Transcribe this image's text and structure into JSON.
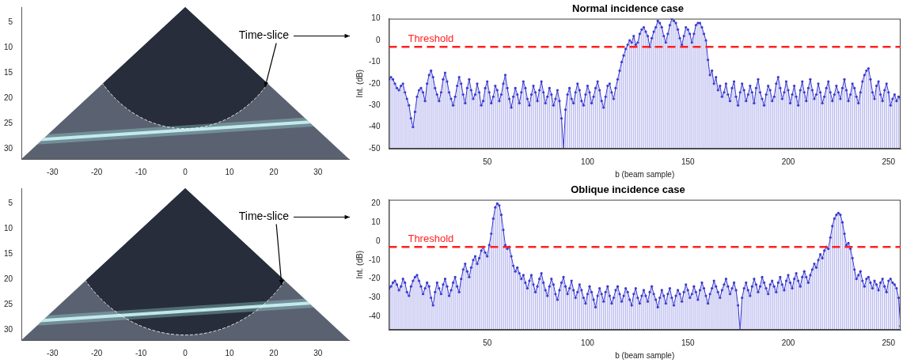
{
  "chart_data": [
    {
      "type": "image",
      "xlim": [
        -37,
        37
      ],
      "ylim": [
        2,
        32
      ],
      "xticks": [
        -30,
        -20,
        -10,
        0,
        10,
        20,
        30
      ],
      "yticks": [
        5,
        10,
        15,
        20,
        25,
        30
      ],
      "annotation": {
        "text": "Time-slice",
        "range": 24
      }
    },
    {
      "type": "bar",
      "title": "Normal incidence case",
      "x_label": "b (beam sample)",
      "y_label": "Int. (dB)",
      "color": "#3a3ad0",
      "marker": "circle",
      "grid": false,
      "xlim": [
        1,
        256
      ],
      "xticks": [
        50,
        100,
        150,
        200,
        250
      ],
      "ylim": [
        -50,
        10
      ],
      "yticks": [
        -50,
        -40,
        -30,
        -20,
        -10,
        0,
        10
      ],
      "threshold": {
        "value": -3,
        "label": "Threshold",
        "color": "#ff2020",
        "line_style": "dashed"
      },
      "x": [
        1,
        2,
        3,
        4,
        5,
        6,
        7,
        8,
        9,
        10,
        11,
        12,
        13,
        14,
        15,
        16,
        17,
        18,
        19,
        20,
        21,
        22,
        23,
        24,
        25,
        26,
        27,
        28,
        29,
        30,
        31,
        32,
        33,
        34,
        35,
        36,
        37,
        38,
        39,
        40,
        41,
        42,
        43,
        44,
        45,
        46,
        47,
        48,
        49,
        50,
        51,
        52,
        53,
        54,
        55,
        56,
        57,
        58,
        59,
        60,
        61,
        62,
        63,
        64,
        65,
        66,
        67,
        68,
        69,
        70,
        71,
        72,
        73,
        74,
        75,
        76,
        77,
        78,
        79,
        80,
        81,
        82,
        83,
        84,
        85,
        86,
        87,
        88,
        89,
        90,
        91,
        92,
        93,
        94,
        95,
        96,
        97,
        98,
        99,
        100,
        101,
        102,
        103,
        104,
        105,
        106,
        107,
        108,
        109,
        110,
        111,
        112,
        113,
        114,
        115,
        116,
        117,
        118,
        119,
        120,
        121,
        122,
        123,
        124,
        125,
        126,
        127,
        128,
        129,
        130,
        131,
        132,
        133,
        134,
        135,
        136,
        137,
        138,
        139,
        140,
        141,
        142,
        143,
        144,
        145,
        146,
        147,
        148,
        149,
        150,
        151,
        152,
        153,
        154,
        155,
        156,
        157,
        158,
        159,
        160,
        161,
        162,
        163,
        164,
        165,
        166,
        167,
        168,
        169,
        170,
        171,
        172,
        173,
        174,
        175,
        176,
        177,
        178,
        179,
        180,
        181,
        182,
        183,
        184,
        185,
        186,
        187,
        188,
        189,
        190,
        191,
        192,
        193,
        194,
        195,
        196,
        197,
        198,
        199,
        200,
        201,
        202,
        203,
        204,
        205,
        206,
        207,
        208,
        209,
        210,
        211,
        212,
        213,
        214,
        215,
        216,
        217,
        218,
        219,
        220,
        221,
        222,
        223,
        224,
        225,
        226,
        227,
        228,
        229,
        230,
        231,
        232,
        233,
        234,
        235,
        236,
        237,
        238,
        239,
        240,
        241,
        242,
        243,
        244,
        245,
        246,
        247,
        248,
        249,
        250,
        251,
        252,
        253,
        254,
        255,
        256
      ],
      "values": [
        -18,
        -17,
        -18,
        -20,
        -22,
        -23,
        -21,
        -20,
        -24,
        -27,
        -30,
        -36,
        -40,
        -33,
        -26,
        -23,
        -22,
        -24,
        -28,
        -20,
        -16,
        -14,
        -17,
        -22,
        -25,
        -28,
        -24,
        -18,
        -15,
        -19,
        -24,
        -27,
        -30,
        -26,
        -21,
        -17,
        -20,
        -25,
        -29,
        -22,
        -18,
        -23,
        -27,
        -25,
        -20,
        -24,
        -30,
        -28,
        -22,
        -19,
        -24,
        -29,
        -26,
        -21,
        -23,
        -28,
        -25,
        -20,
        -16,
        -22,
        -27,
        -31,
        -26,
        -22,
        -25,
        -29,
        -24,
        -19,
        -22,
        -27,
        -30,
        -25,
        -21,
        -24,
        -28,
        -23,
        -19,
        -24,
        -29,
        -26,
        -22,
        -25,
        -30,
        -27,
        -23,
        -28,
        -36,
        -50,
        -32,
        -25,
        -22,
        -27,
        -29,
        -24,
        -20,
        -23,
        -28,
        -30,
        -25,
        -21,
        -24,
        -29,
        -26,
        -22,
        -19,
        -23,
        -28,
        -31,
        -26,
        -21,
        -20,
        -24,
        -27,
        -22,
        -18,
        -14,
        -10,
        -7,
        -4,
        -2,
        0,
        -1,
        2,
        -2,
        -1,
        3,
        5,
        6,
        4,
        2,
        -3,
        1,
        4,
        6,
        9,
        8,
        6,
        2,
        -1,
        3,
        7,
        10,
        9,
        8,
        5,
        1,
        -2,
        2,
        6,
        5,
        3,
        -1,
        3,
        7,
        8,
        8,
        6,
        3,
        0,
        -9,
        -16,
        -14,
        -20,
        -17,
        -23,
        -21,
        -26,
        -24,
        -20,
        -25,
        -28,
        -22,
        -19,
        -26,
        -30,
        -24,
        -20,
        -23,
        -28,
        -25,
        -21,
        -24,
        -29,
        -22,
        -18,
        -24,
        -27,
        -30,
        -25,
        -21,
        -23,
        -28,
        -26,
        -20,
        -17,
        -22,
        -27,
        -24,
        -19,
        -23,
        -29,
        -25,
        -21,
        -26,
        -30,
        -23,
        -19,
        -24,
        -28,
        -22,
        -18,
        -23,
        -27,
        -25,
        -20,
        -24,
        -29,
        -26,
        -22,
        -19,
        -24,
        -28,
        -25,
        -21,
        -24,
        -27,
        -22,
        -18,
        -23,
        -28,
        -25,
        -20,
        -22,
        -26,
        -29,
        -24,
        -19,
        -16,
        -14,
        -13,
        -18,
        -24,
        -27,
        -21,
        -19,
        -25,
        -28,
        -23,
        -20,
        -24,
        -30,
        -27,
        -25,
        -28,
        -26,
        -27
      ]
    },
    {
      "type": "image",
      "xlim": [
        -37,
        37
      ],
      "ylim": [
        2,
        32
      ],
      "xticks": [
        -30,
        -20,
        -10,
        0,
        10,
        20,
        30
      ],
      "yticks": [
        5,
        10,
        15,
        20,
        25,
        30
      ],
      "annotation": {
        "text": "Time-slice",
        "range": 29
      }
    },
    {
      "type": "bar",
      "title": "Oblique incidence case",
      "x_label": "b (beam sample)",
      "y_label": "Int. (dB)",
      "color": "#3a3ad0",
      "marker": "circle",
      "grid": false,
      "xlim": [
        1,
        256
      ],
      "xticks": [
        50,
        100,
        150,
        200,
        250
      ],
      "ylim": [
        -47,
        22
      ],
      "yticks": [
        -40,
        -30,
        -20,
        -10,
        0,
        10,
        20
      ],
      "threshold": {
        "value": -3,
        "label": "Threshold",
        "color": "#ff2020",
        "line_style": "dashed"
      },
      "x": [
        1,
        2,
        3,
        4,
        5,
        6,
        7,
        8,
        9,
        10,
        11,
        12,
        13,
        14,
        15,
        16,
        17,
        18,
        19,
        20,
        21,
        22,
        23,
        24,
        25,
        26,
        27,
        28,
        29,
        30,
        31,
        32,
        33,
        34,
        35,
        36,
        37,
        38,
        39,
        40,
        41,
        42,
        43,
        44,
        45,
        46,
        47,
        48,
        49,
        50,
        51,
        52,
        53,
        54,
        55,
        56,
        57,
        58,
        59,
        60,
        61,
        62,
        63,
        64,
        65,
        66,
        67,
        68,
        69,
        70,
        71,
        72,
        73,
        74,
        75,
        76,
        77,
        78,
        79,
        80,
        81,
        82,
        83,
        84,
        85,
        86,
        87,
        88,
        89,
        90,
        91,
        92,
        93,
        94,
        95,
        96,
        97,
        98,
        99,
        100,
        101,
        102,
        103,
        104,
        105,
        106,
        107,
        108,
        109,
        110,
        111,
        112,
        113,
        114,
        115,
        116,
        117,
        118,
        119,
        120,
        121,
        122,
        123,
        124,
        125,
        126,
        127,
        128,
        129,
        130,
        131,
        132,
        133,
        134,
        135,
        136,
        137,
        138,
        139,
        140,
        141,
        142,
        143,
        144,
        145,
        146,
        147,
        148,
        149,
        150,
        151,
        152,
        153,
        154,
        155,
        156,
        157,
        158,
        159,
        160,
        161,
        162,
        163,
        164,
        165,
        166,
        167,
        168,
        169,
        170,
        171,
        172,
        173,
        174,
        175,
        176,
        177,
        178,
        179,
        180,
        181,
        182,
        183,
        184,
        185,
        186,
        187,
        188,
        189,
        190,
        191,
        192,
        193,
        194,
        195,
        196,
        197,
        198,
        199,
        200,
        201,
        202,
        203,
        204,
        205,
        206,
        207,
        208,
        209,
        210,
        211,
        212,
        213,
        214,
        215,
        216,
        217,
        218,
        219,
        220,
        221,
        222,
        223,
        224,
        225,
        226,
        227,
        228,
        229,
        230,
        231,
        232,
        233,
        234,
        235,
        236,
        237,
        238,
        239,
        240,
        241,
        242,
        243,
        244,
        245,
        246,
        247,
        248,
        249,
        250,
        251,
        252,
        253,
        254,
        255,
        256
      ],
      "values": [
        -25,
        -24,
        -22,
        -21,
        -23,
        -26,
        -24,
        -20,
        -22,
        -27,
        -29,
        -24,
        -21,
        -19,
        -18,
        -21,
        -24,
        -28,
        -25,
        -22,
        -24,
        -30,
        -34,
        -27,
        -22,
        -25,
        -28,
        -23,
        -20,
        -24,
        -29,
        -26,
        -22,
        -19,
        -24,
        -27,
        -20,
        -15,
        -12,
        -16,
        -19,
        -14,
        -10,
        -8,
        -12,
        -9,
        -5,
        -3,
        -6,
        -8,
        -2,
        4,
        12,
        18,
        20,
        19,
        14,
        6,
        -2,
        -4,
        -3,
        -8,
        -13,
        -16,
        -14,
        -17,
        -20,
        -18,
        -22,
        -25,
        -21,
        -18,
        -23,
        -27,
        -24,
        -20,
        -17,
        -22,
        -26,
        -29,
        -24,
        -20,
        -23,
        -28,
        -31,
        -26,
        -22,
        -19,
        -24,
        -28,
        -25,
        -21,
        -26,
        -30,
        -27,
        -23,
        -26,
        -30,
        -33,
        -28,
        -24,
        -27,
        -31,
        -35,
        -29,
        -25,
        -28,
        -32,
        -27,
        -24,
        -29,
        -33,
        -30,
        -26,
        -24,
        -28,
        -32,
        -29,
        -25,
        -27,
        -31,
        -34,
        -28,
        -25,
        -30,
        -33,
        -29,
        -26,
        -29,
        -32,
        -27,
        -24,
        -28,
        -31,
        -35,
        -30,
        -26,
        -29,
        -33,
        -28,
        -25,
        -30,
        -34,
        -29,
        -26,
        -28,
        -32,
        -27,
        -23,
        -26,
        -30,
        -28,
        -24,
        -27,
        -31,
        -26,
        -22,
        -25,
        -29,
        -33,
        -28,
        -25,
        -21,
        -24,
        -27,
        -30,
        -26,
        -23,
        -20,
        -24,
        -28,
        -25,
        -22,
        -26,
        -34,
        -47,
        -30,
        -25,
        -22,
        -26,
        -29,
        -24,
        -20,
        -23,
        -27,
        -24,
        -19,
        -22,
        -25,
        -28,
        -23,
        -21,
        -24,
        -27,
        -22,
        -19,
        -23,
        -26,
        -21,
        -18,
        -22,
        -25,
        -20,
        -17,
        -21,
        -24,
        -19,
        -16,
        -19,
        -22,
        -18,
        -15,
        -12,
        -14,
        -10,
        -7,
        -9,
        -5,
        -3,
        -4,
        2,
        8,
        12,
        14,
        15,
        14,
        10,
        4,
        -2,
        -1,
        -4,
        -9,
        -15,
        -20,
        -18,
        -16,
        -21,
        -24,
        -20,
        -19,
        -22,
        -25,
        -21,
        -23,
        -26,
        -22,
        -20,
        -24,
        -27,
        -21,
        -20,
        -22,
        -23,
        -25,
        -30,
        -45
      ]
    }
  ]
}
